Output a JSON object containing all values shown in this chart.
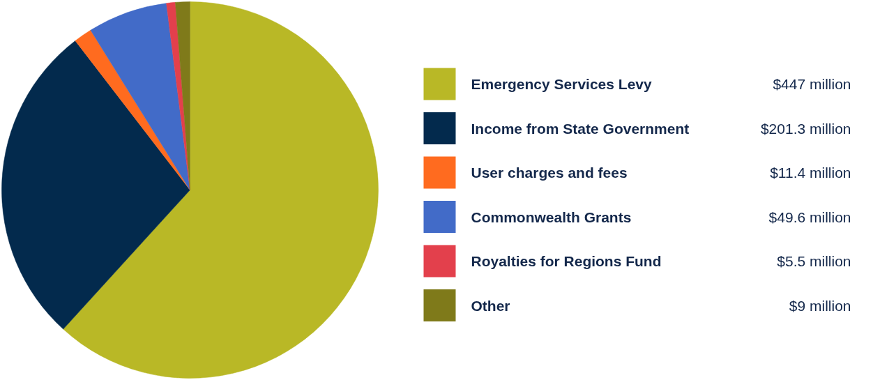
{
  "chart_data": {
    "type": "pie",
    "categories": [
      "Emergency Services Levy",
      "Income from State Government",
      "User charges and fees",
      "Commonwealth Grants",
      "Royalties for Regions Fund",
      "Other"
    ],
    "values": [
      447,
      201.3,
      11.4,
      49.6,
      5.5,
      9
    ],
    "colors": [
      "#b9b826",
      "#032a4d",
      "#ff6b1f",
      "#426bc8",
      "#e3404c",
      "#7f7a1a"
    ],
    "value_labels": [
      "$447 million",
      "$201.3 million",
      "$11.4 million",
      "$49.6 million",
      "$5.5 million",
      "$9 million"
    ],
    "legend": "right"
  }
}
